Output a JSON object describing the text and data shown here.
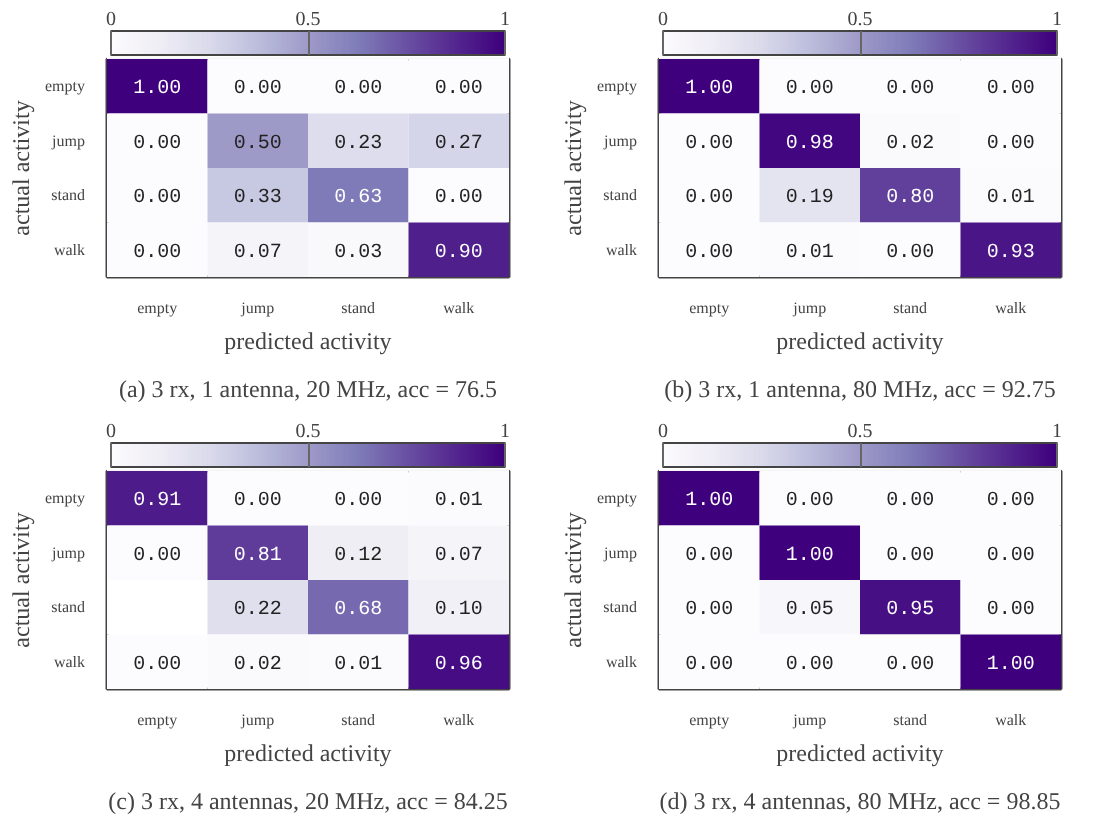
{
  "chart_data": [
    {
      "type": "heatmap",
      "title": "(a) 3 rx, 1 antenna, 20 MHz, acc = 76.5",
      "xlabel": "predicted activity",
      "ylabel": "actual activity",
      "categories": [
        "empty",
        "jump",
        "stand",
        "walk"
      ],
      "y_categories": [
        "empty",
        "jump",
        "stand",
        "walk"
      ],
      "cells": [
        [
          1.0,
          0.0,
          0.0,
          0.0
        ],
        [
          0.0,
          0.5,
          0.23,
          0.27
        ],
        [
          0.0,
          0.33,
          0.63,
          0.0
        ],
        [
          0.0,
          0.07,
          0.03,
          0.9
        ]
      ],
      "cell_labels": [
        [
          "1.00",
          "0.00",
          "0.00",
          "0.00"
        ],
        [
          "0.00",
          "0.50",
          "0.23",
          "0.27"
        ],
        [
          "0.00",
          "0.33",
          "0.63",
          "0.00"
        ],
        [
          "0.00",
          "0.07",
          "0.03",
          "0.90"
        ]
      ],
      "clim": [
        0,
        1
      ],
      "cticks": [
        0,
        0.5,
        1
      ]
    },
    {
      "type": "heatmap",
      "title": "(b) 3 rx, 1 antenna, 80 MHz, acc = 92.75",
      "xlabel": "predicted activity",
      "ylabel": "actual activity",
      "categories": [
        "empty",
        "jump",
        "stand",
        "walk"
      ],
      "y_categories": [
        "empty",
        "jump",
        "stand",
        "walk"
      ],
      "cells": [
        [
          1.0,
          0.0,
          0.0,
          0.0
        ],
        [
          0.0,
          0.98,
          0.02,
          0.0
        ],
        [
          0.0,
          0.19,
          0.8,
          0.01
        ],
        [
          0.0,
          0.01,
          0.0,
          0.93
        ]
      ],
      "cell_labels": [
        [
          "1.00",
          "0.00",
          "0.00",
          "0.00"
        ],
        [
          "0.00",
          "0.98",
          "0.02",
          "0.00"
        ],
        [
          "0.00",
          "0.19",
          "0.80",
          "0.01"
        ],
        [
          "0.00",
          "0.01",
          "0.00",
          "0.93"
        ]
      ],
      "clim": [
        0,
        1
      ],
      "cticks": [
        0,
        0.5,
        1
      ]
    },
    {
      "type": "heatmap",
      "title": "(c) 3 rx, 4 antennas, 20 MHz, acc = 84.25",
      "xlabel": "predicted activity",
      "ylabel": "actual activity",
      "categories": [
        "empty",
        "jump",
        "stand",
        "walk"
      ],
      "y_categories": [
        "empty",
        "jump",
        "stand",
        "walk"
      ],
      "cells": [
        [
          0.91,
          0.0,
          0.0,
          0.01
        ],
        [
          0.0,
          0.81,
          0.12,
          0.07
        ],
        [
          null,
          0.22,
          0.68,
          0.1
        ],
        [
          0.0,
          0.02,
          0.01,
          0.96
        ]
      ],
      "cell_labels": [
        [
          "0.91",
          "0.00",
          "0.00",
          "0.01"
        ],
        [
          "0.00",
          "0.81",
          "0.12",
          "0.07"
        ],
        [
          null,
          "0.22",
          "0.68",
          "0.10"
        ],
        [
          "0.00",
          "0.02",
          "0.01",
          "0.96"
        ]
      ],
      "clim": [
        0,
        1
      ],
      "cticks": [
        0,
        0.5,
        1
      ]
    },
    {
      "type": "heatmap",
      "title": "(d) 3 rx, 4 antennas, 80 MHz, acc = 98.85",
      "xlabel": "predicted activity",
      "ylabel": "actual activity",
      "categories": [
        "empty",
        "jump",
        "stand",
        "walk"
      ],
      "y_categories": [
        "empty",
        "jump",
        "stand",
        "walk"
      ],
      "cells": [
        [
          1.0,
          0.0,
          0.0,
          0.0
        ],
        [
          0.0,
          1.0,
          0.0,
          0.0
        ],
        [
          0.0,
          0.05,
          0.95,
          0.0
        ],
        [
          0.0,
          0.0,
          0.0,
          1.0
        ]
      ],
      "cell_labels": [
        [
          "1.00",
          "0.00",
          "0.00",
          "0.00"
        ],
        [
          "0.00",
          "1.00",
          "0.00",
          "0.00"
        ],
        [
          "0.00",
          "0.05",
          "0.95",
          "0.00"
        ],
        [
          "0.00",
          "0.00",
          "0.00",
          "1.00"
        ]
      ],
      "clim": [
        0,
        1
      ],
      "cticks": [
        0,
        0.5,
        1
      ]
    }
  ]
}
